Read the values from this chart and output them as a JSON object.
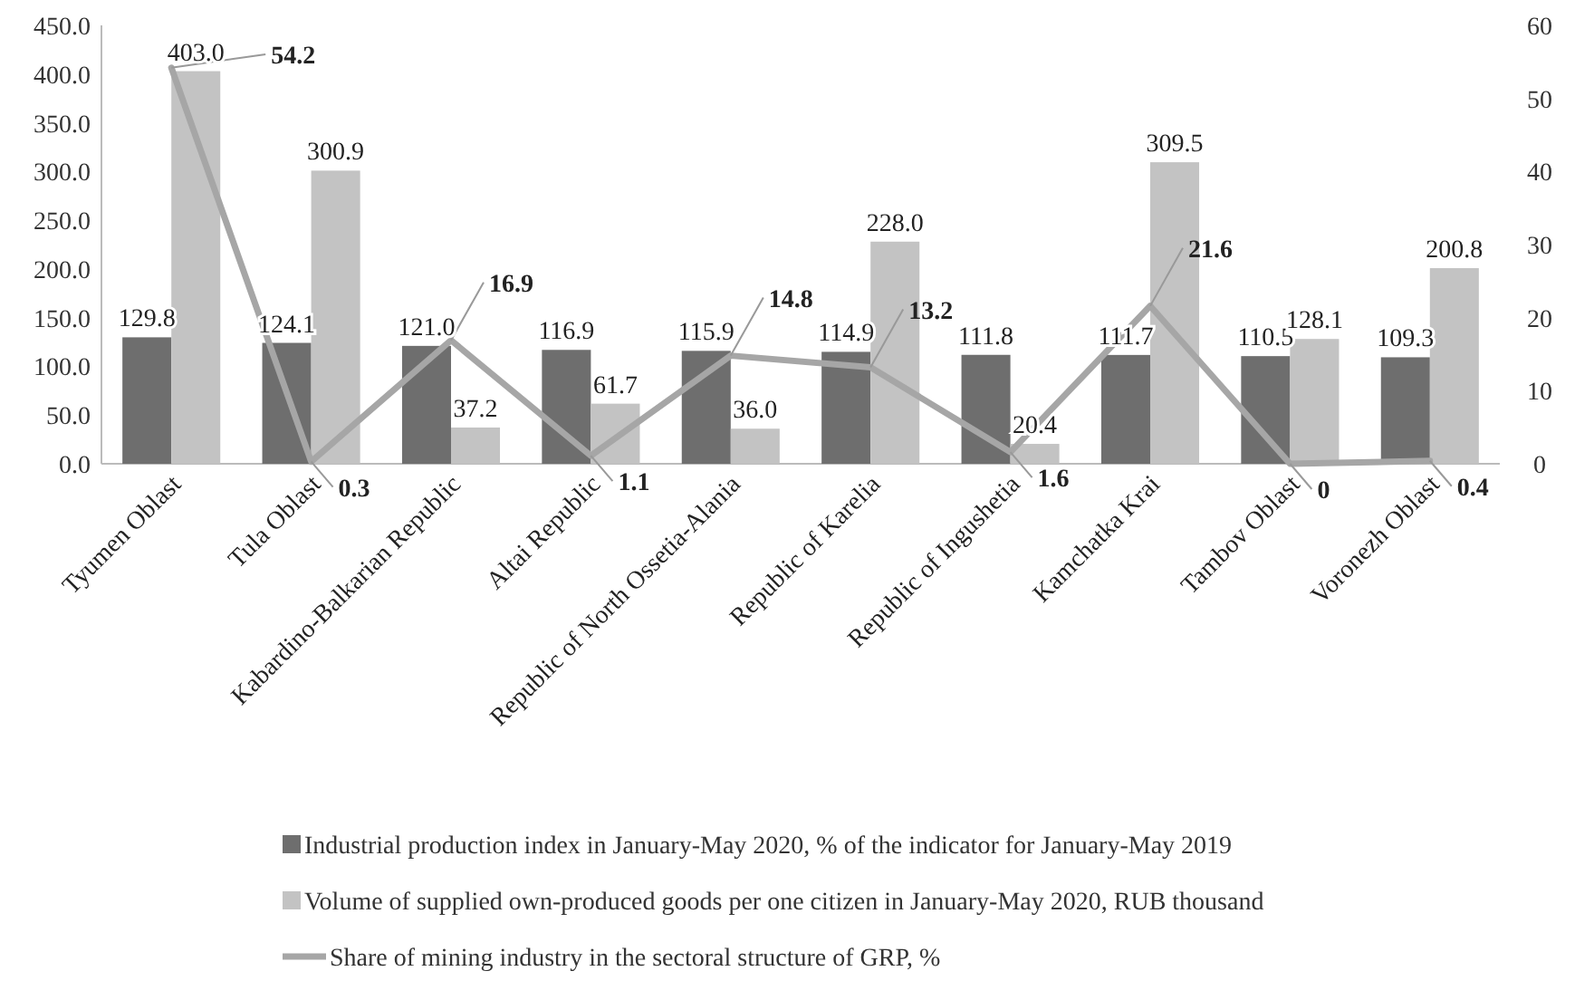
{
  "chart_data": {
    "type": "bar",
    "categories": [
      "Tyumen Oblast",
      "Tula Oblast",
      "Kabardino-Balkarian Republic",
      "Altai Republic",
      "Republic of North Ossetia-Alania",
      "Republic of Karelia",
      "Republic of Ingushetia",
      "Kamchatka Krai",
      "Tambov Oblast",
      "Voronezh Oblast"
    ],
    "series": [
      {
        "name": "Industrial production index in January-May 2020, % of the indicator for January-May 2019",
        "color": "#6e6e6e",
        "values": [
          129.8,
          124.1,
          121.0,
          116.9,
          115.9,
          114.9,
          111.8,
          111.7,
          110.5,
          109.3
        ],
        "value_labels": [
          "129.8",
          "124.1",
          "121.0",
          "116.9",
          "115.9",
          "114.9",
          "111.8",
          "111.7",
          "110.5",
          "109.3"
        ]
      },
      {
        "name": "Volume of supplied own-produced goods per one citizen in January-May 2020, RUB thousand",
        "color": "#c3c3c3",
        "values": [
          403.0,
          300.9,
          37.2,
          61.7,
          36.0,
          228.0,
          20.4,
          309.5,
          128.1,
          200.8
        ],
        "value_labels": [
          "403.0",
          "300.9",
          "37.2",
          "61.7",
          "36.0",
          "228.0",
          "20.4",
          "309.5",
          "128.1",
          "200.8"
        ]
      },
      {
        "name": "Share of mining industry in the sectoral structure of GRP, %",
        "type": "line",
        "axis": "y2",
        "color": "#a6a6a6",
        "values": [
          54.2,
          0.3,
          16.9,
          1.1,
          14.8,
          13.2,
          1.6,
          21.6,
          0,
          0.4
        ],
        "value_labels": [
          "54.2",
          "0.3",
          "16.9",
          "1.1",
          "14.8",
          "13.2",
          "1.6",
          "21.6",
          "0",
          "0.4"
        ]
      }
    ],
    "ylim": [
      0,
      450
    ],
    "yticks": [
      {
        "value": 0,
        "label": "0.0"
      },
      {
        "value": 50,
        "label": "50.0"
      },
      {
        "value": 100,
        "label": "100.0"
      },
      {
        "value": 150,
        "label": "150.0"
      },
      {
        "value": 200,
        "label": "200.0"
      },
      {
        "value": 250,
        "label": "250.0"
      },
      {
        "value": 300,
        "label": "300.0"
      },
      {
        "value": 350,
        "label": "350.0"
      },
      {
        "value": 400,
        "label": "400.0"
      },
      {
        "value": 450,
        "label": "450.0"
      }
    ],
    "y2lim": [
      0,
      60
    ],
    "y2ticks": [
      0,
      10,
      20,
      30,
      40,
      50,
      60
    ],
    "grid": false,
    "legend": "bottom",
    "marker": "none",
    "line_style": "solid"
  }
}
